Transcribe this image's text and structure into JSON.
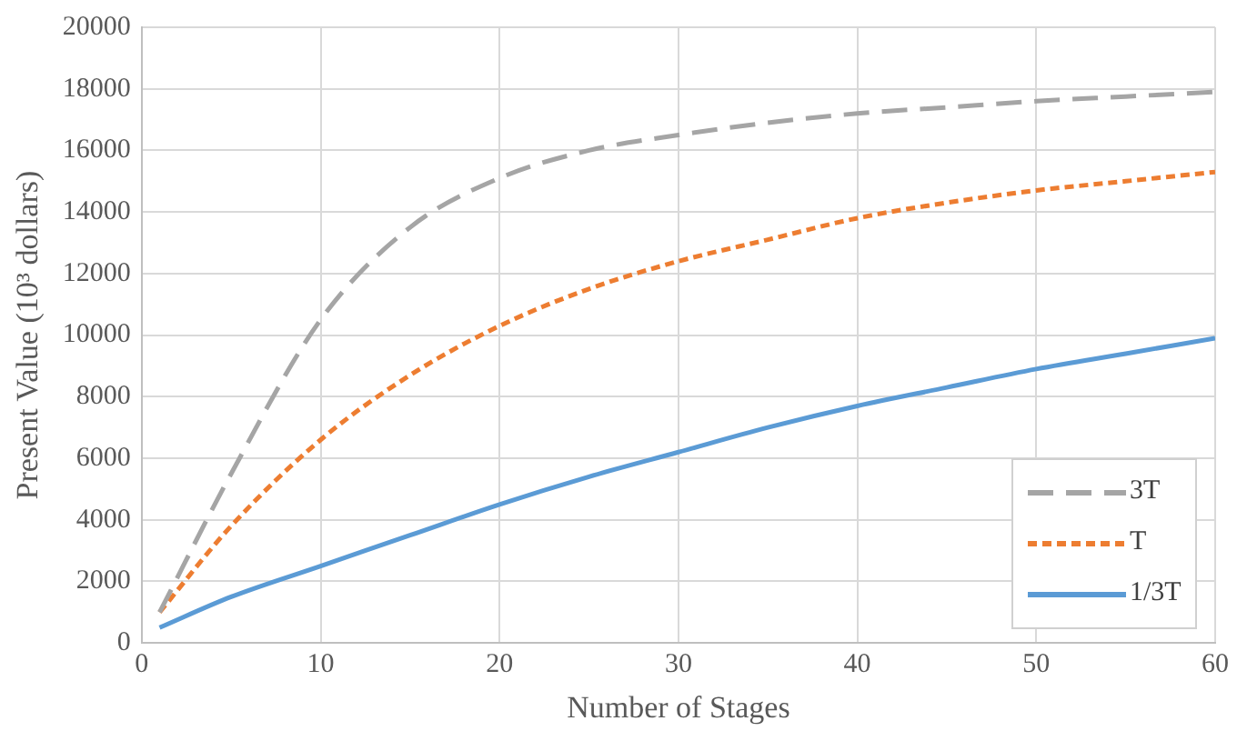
{
  "chart_data": {
    "type": "line",
    "xlabel": "Number of Stages",
    "ylabel": "Present Value (10³ dollars)",
    "xlim": [
      0,
      60
    ],
    "xticks": [
      0,
      10,
      20,
      30,
      40,
      50,
      60
    ],
    "ylim": [
      0,
      20000
    ],
    "yticks": [
      0,
      2000,
      4000,
      6000,
      8000,
      10000,
      12000,
      14000,
      16000,
      18000,
      20000
    ],
    "grid": true,
    "legend": "bottom right",
    "marker": "none",
    "x": [
      1,
      5,
      10,
      15,
      20,
      25,
      30,
      35,
      40,
      45,
      50,
      55,
      60
    ],
    "series": [
      {
        "name": "3T",
        "color": "#a5a5a5",
        "line_style": "dashed",
        "values": [
          1000,
          5500,
          10500,
          13500,
          15100,
          16000,
          16500,
          16900,
          17200,
          17400,
          17600,
          17750,
          17900
        ]
      },
      {
        "name": "T",
        "color": "#ed7d31",
        "line_style": "dotted",
        "values": [
          1000,
          3800,
          6600,
          8700,
          10300,
          11500,
          12400,
          13100,
          13800,
          14300,
          14700,
          15000,
          15300
        ]
      },
      {
        "name": "1/3T",
        "color": "#5b9bd5",
        "line_style": "solid",
        "values": [
          500,
          1500,
          2500,
          3500,
          4500,
          5400,
          6200,
          7000,
          7700,
          8300,
          8900,
          9400,
          9900
        ]
      }
    ]
  }
}
